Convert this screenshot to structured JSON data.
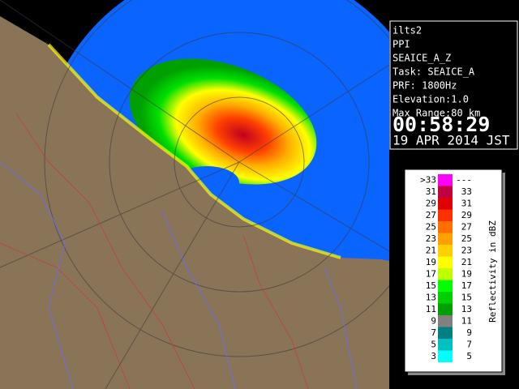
{
  "info": {
    "lines": [
      "ilts2",
      "PPI",
      "SEAICE_A_Z",
      "Task: SEAICE_A",
      "PRF: 1800Hz",
      "Elevation:1.0",
      "Max Range:80 km"
    ],
    "time": "00:58:29",
    "date": "19 APR 2014 JST"
  },
  "legend": {
    "axis_label": "Reflectivity in dBZ",
    "rows": [
      {
        "low": ">33",
        "high": "---",
        "color": "#ff00ff"
      },
      {
        "low": "31",
        "high": "33",
        "color": "#c00040"
      },
      {
        "low": "29",
        "high": "31",
        "color": "#e00000"
      },
      {
        "low": "27",
        "high": "29",
        "color": "#ff3000"
      },
      {
        "low": "25",
        "high": "27",
        "color": "#ff7000"
      },
      {
        "low": "23",
        "high": "25",
        "color": "#ffa000"
      },
      {
        "low": "21",
        "high": "23",
        "color": "#ffd000"
      },
      {
        "low": "19",
        "high": "21",
        "color": "#ffff00"
      },
      {
        "low": "17",
        "high": "19",
        "color": "#c0ff00"
      },
      {
        "low": "15",
        "high": "17",
        "color": "#00ff00"
      },
      {
        "low": "13",
        "high": "15",
        "color": "#00d000"
      },
      {
        "low": "11",
        "high": "13",
        "color": "#00a000"
      },
      {
        "low": "9",
        "high": "11",
        "color": "#808080"
      },
      {
        "low": "7",
        "high": "9",
        "color": "#008080"
      },
      {
        "low": "5",
        "high": "7",
        "color": "#00c0c0"
      },
      {
        "low": "3",
        "high": "5",
        "color": "#00ffff"
      }
    ]
  }
}
